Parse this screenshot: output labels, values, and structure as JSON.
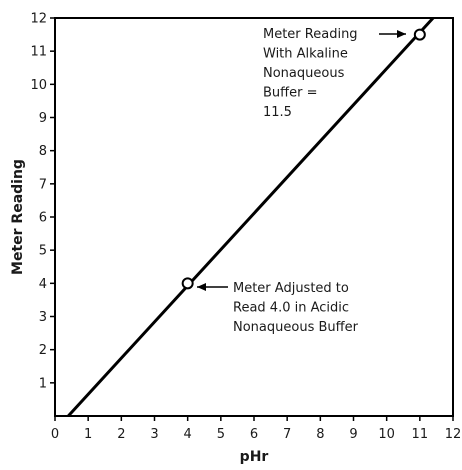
{
  "chart_data": {
    "type": "line",
    "xlabel": "pHr",
    "ylabel": "Meter Reading",
    "xlim": [
      0,
      12
    ],
    "ylim": [
      0,
      12
    ],
    "x_ticks": [
      "0",
      "1",
      "2",
      "3",
      "4",
      "5",
      "6",
      "7",
      "8",
      "9",
      "10",
      "11",
      "12"
    ],
    "y_ticks": [
      "1",
      "2",
      "3",
      "4",
      "5",
      "6",
      "7",
      "8",
      "9",
      "10",
      "11",
      "12"
    ],
    "grid": false,
    "series": [
      {
        "x": [
          0.4,
          11.4
        ],
        "y": [
          0,
          12
        ],
        "color": "#000000"
      }
    ],
    "points": [
      {
        "x": 4.0,
        "y": 4.0
      },
      {
        "x": 11.0,
        "y": 11.5
      }
    ],
    "annotations": [
      {
        "lines": [
          "Meter Reading",
          "With Alkaline",
          "Nonaqueous",
          "Buffer =",
          "11.5"
        ],
        "points_to": [
          11.0,
          11.5
        ]
      },
      {
        "lines": [
          "Meter Adjusted to",
          "Read 4.0 in Acidic",
          "Nonaqueous Buffer"
        ],
        "points_to": [
          4.0,
          4.0
        ]
      }
    ]
  }
}
